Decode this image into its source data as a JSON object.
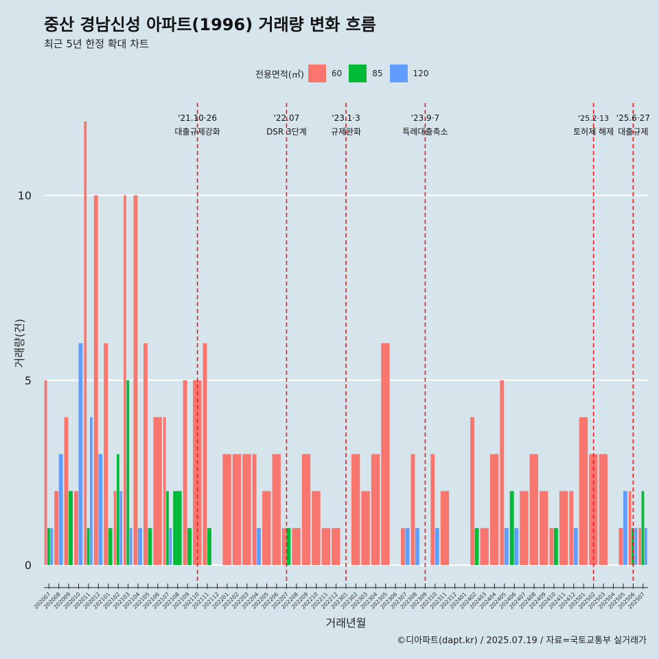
{
  "title": "중산 경남신성 아파트(1996) 거래량 변화 흐름",
  "subtitle": "최근 5년 한정 확대 차트",
  "caption": "©디아파트(dapt.kr) / 2025.07.19 / 자료=국토교통부 실거래가",
  "legend": {
    "title": "전용면적(㎡)",
    "items": [
      {
        "label": "60",
        "color": "#f8766d"
      },
      {
        "label": "85",
        "color": "#00ba38"
      },
      {
        "label": "120",
        "color": "#619cff"
      }
    ]
  },
  "chart_data": {
    "type": "bar",
    "xlabel": "거래년월",
    "ylabel": "거래량(건)",
    "ylim": [
      -0.5,
      12.5
    ],
    "yticks": [
      0,
      5,
      10
    ],
    "grid": true,
    "legend_position": "top",
    "categories": [
      "202007",
      "202008",
      "202009",
      "202010",
      "202011",
      "202012",
      "202101",
      "202102",
      "202103",
      "202104",
      "202105",
      "202106",
      "202107",
      "202108",
      "202109",
      "202110",
      "202111",
      "202112",
      "202201",
      "202202",
      "202203",
      "202204",
      "202205",
      "202206",
      "202207",
      "202208",
      "202209",
      "202210",
      "202211",
      "202212",
      "202301",
      "202302",
      "202303",
      "202304",
      "202305",
      "202306",
      "202307",
      "202308",
      "202309",
      "202310",
      "202311",
      "202312",
      "202401",
      "202402",
      "202403",
      "202404",
      "202405",
      "202406",
      "202407",
      "202408",
      "202409",
      "202410",
      "202411",
      "202412",
      "202501",
      "202502",
      "202503",
      "202504",
      "202505",
      "202506",
      "202507"
    ],
    "series": [
      {
        "name": "60",
        "color": "#f8766d",
        "values": [
          5,
          2,
          4,
          2,
          12,
          10,
          6,
          2,
          10,
          10,
          6,
          4,
          4,
          0,
          5,
          5,
          6,
          0,
          3,
          3,
          3,
          3,
          2,
          3,
          1,
          1,
          3,
          2,
          1,
          1,
          0,
          3,
          2,
          3,
          6,
          0,
          1,
          3,
          0,
          3,
          2,
          0,
          0,
          4,
          1,
          3,
          5,
          0,
          2,
          3,
          2,
          1,
          2,
          2,
          4,
          3,
          3,
          0,
          1,
          2,
          1
        ]
      },
      {
        "name": "85",
        "color": "#00ba38",
        "values": [
          1,
          0,
          2,
          0,
          1,
          0,
          1,
          3,
          5,
          0,
          1,
          0,
          2,
          2,
          1,
          0,
          1,
          0,
          0,
          0,
          0,
          0,
          0,
          0,
          1,
          0,
          0,
          0,
          0,
          0,
          0,
          0,
          0,
          0,
          0,
          0,
          0,
          0,
          0,
          0,
          0,
          0,
          0,
          1,
          0,
          0,
          0,
          2,
          0,
          0,
          0,
          1,
          0,
          0,
          0,
          0,
          0,
          0,
          0,
          1,
          2
        ]
      },
      {
        "name": "120",
        "color": "#619cff",
        "values": [
          1,
          3,
          0,
          6,
          4,
          3,
          0,
          2,
          1,
          1,
          0,
          0,
          1,
          0,
          0,
          0,
          0,
          0,
          0,
          0,
          0,
          1,
          0,
          0,
          0,
          0,
          0,
          0,
          0,
          0,
          0,
          0,
          0,
          0,
          0,
          0,
          1,
          1,
          0,
          1,
          0,
          0,
          0,
          0,
          0,
          0,
          1,
          1,
          0,
          0,
          0,
          0,
          0,
          1,
          0,
          0,
          0,
          0,
          2,
          1,
          1
        ]
      }
    ],
    "events": [
      {
        "date": "'21.10·26",
        "label": "대출규제강화",
        "category": "202110"
      },
      {
        "date": "'22.07",
        "label": "DSR 3단계",
        "category": "202207"
      },
      {
        "date": "'23.1·3",
        "label": "규제완화",
        "category": "202301"
      },
      {
        "date": "'23.9·7",
        "label": "특례대출축소",
        "category": "202309"
      },
      {
        "date": "'25.2·13",
        "label": "토허제 해제",
        "category": "202502"
      },
      {
        "date": "'25.6·27",
        "label": "대출규제",
        "category": "202506"
      }
    ]
  }
}
